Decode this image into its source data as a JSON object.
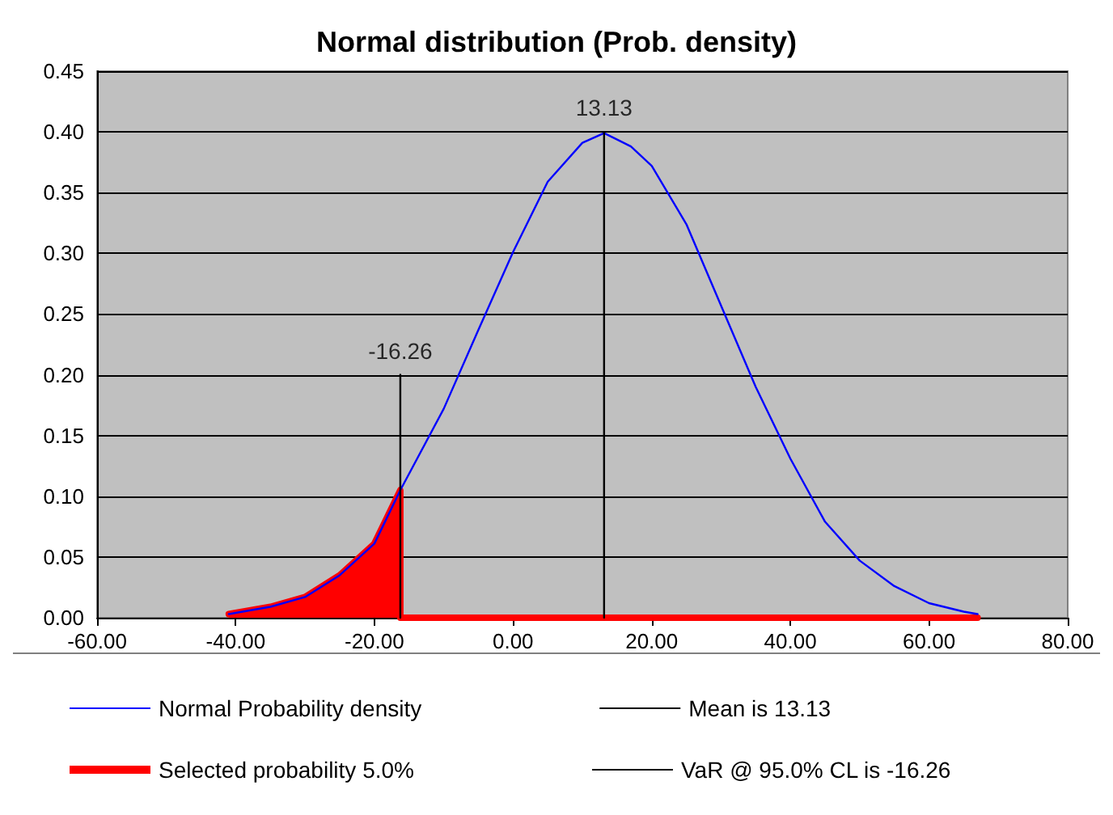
{
  "chart_data": {
    "type": "line",
    "title": "Normal distribution (Prob. density)",
    "xlim": [
      -60,
      80
    ],
    "xticks": [
      {
        "value": -60,
        "label": "-60.00"
      },
      {
        "value": -40,
        "label": "-40.00"
      },
      {
        "value": -20,
        "label": "-20.00"
      },
      {
        "value": 0,
        "label": "0.00"
      },
      {
        "value": 20,
        "label": "20.00"
      },
      {
        "value": 40,
        "label": "40.00"
      },
      {
        "value": 60,
        "label": "60.00"
      },
      {
        "value": 80,
        "label": "80.00"
      }
    ],
    "ylim": [
      0,
      0.45
    ],
    "yticks": [
      {
        "value": 0,
        "label": "0.00"
      },
      {
        "value": 0.05,
        "label": "0.05"
      },
      {
        "value": 0.1,
        "label": "0.10"
      },
      {
        "value": 0.15,
        "label": "0.15"
      },
      {
        "value": 0.2,
        "label": "0.20"
      },
      {
        "value": 0.25,
        "label": "0.25"
      },
      {
        "value": 0.3,
        "label": "0.30"
      },
      {
        "value": 0.35,
        "label": "0.35"
      },
      {
        "value": 0.4,
        "label": "0.40"
      },
      {
        "value": 0.45,
        "label": "0.45"
      }
    ],
    "grid": "y",
    "legend": "bottom",
    "marker": "none",
    "series": [
      {
        "name": "Normal Probability density",
        "color": "#0000ff",
        "x": [
          -41,
          -35,
          -30,
          -25,
          -20,
          -16.26,
          -10,
          -5,
          0,
          5,
          10,
          13.13,
          17,
          20,
          25,
          30,
          35,
          40,
          45,
          50,
          55,
          60,
          65,
          67
        ],
        "values": [
          0.003,
          0.009,
          0.017,
          0.035,
          0.061,
          0.105,
          0.172,
          0.237,
          0.301,
          0.359,
          0.391,
          0.399,
          0.388,
          0.372,
          0.324,
          0.257,
          0.19,
          0.131,
          0.079,
          0.047,
          0.026,
          0.012,
          0.005,
          0.003
        ]
      },
      {
        "name": "Selected probability 5.0%",
        "type": "area",
        "color": "#ff0000",
        "x": [
          -41,
          -35,
          -30,
          -25,
          -20,
          -16.26,
          -16.26,
          67
        ],
        "values": [
          0.003,
          0.009,
          0.017,
          0.035,
          0.061,
          0.105,
          0,
          0
        ]
      },
      {
        "name": "Mean is 13.13",
        "type": "line",
        "color": "#000000",
        "x": [
          13.13,
          13.13
        ],
        "values": [
          0,
          0.4
        ]
      },
      {
        "name": "VaR @ 95.0% CL is -16.26",
        "type": "line",
        "color": "#000000",
        "x": [
          -16.26,
          -16.26
        ],
        "values": [
          0,
          0.2
        ]
      }
    ],
    "annotations": [
      {
        "text": "13.13",
        "x": 13.13,
        "y": 0.4
      },
      {
        "text": "-16.26",
        "x": -16.26,
        "y": 0.2
      }
    ]
  }
}
